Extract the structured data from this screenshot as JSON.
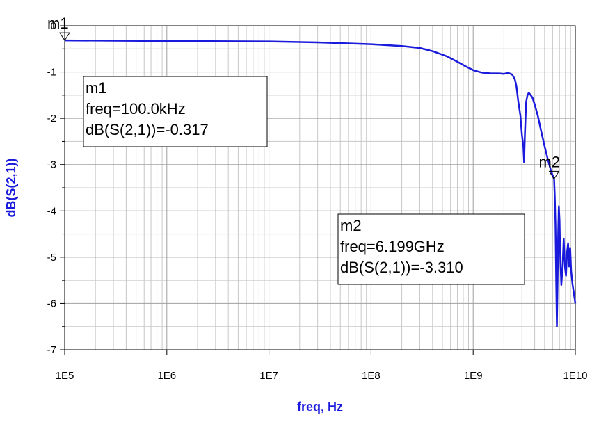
{
  "chart_data": {
    "type": "line",
    "x_scale": "log",
    "xlabel": "freq, Hz",
    "ylabel": "dB(S(2,1))",
    "xlim": [
      100000,
      10000000000
    ],
    "ylim": [
      -7,
      0
    ],
    "x_ticks": [
      "1E5",
      "1E6",
      "1E7",
      "1E8",
      "1E9",
      "1E10"
    ],
    "y_ticks": [
      "0",
      "-1",
      "-2",
      "-3",
      "-4",
      "-5",
      "-6",
      "-7"
    ],
    "grid": true,
    "series": [
      {
        "color": "#1a1adc",
        "x": [
          100000,
          1000000,
          10000000,
          30000000,
          100000000,
          200000000,
          300000000,
          400000000,
          550000000,
          700000000,
          850000000,
          1000000000,
          1200000000,
          1500000000,
          1800000000,
          2000000000,
          2200000000,
          2400000000,
          2550000000,
          2650000000,
          2750000000,
          2900000000,
          3000000000,
          3100000000,
          3150000000,
          3200000000,
          3300000000,
          3400000000,
          3500000000,
          3600000000,
          3800000000,
          4000000000,
          4300000000,
          4600000000,
          5000000000,
          5400000000,
          5800000000,
          6199000000,
          6300000000,
          6400000000,
          6500000000,
          6600000000,
          6700000000,
          6800000000,
          6900000000,
          7000000000,
          7100000000,
          7300000000,
          7500000000,
          7700000000,
          7900000000,
          8100000000,
          8300000000,
          8500000000,
          8700000000,
          8900000000,
          9100000000,
          9400000000,
          9700000000,
          10000000000
        ],
        "y": [
          -0.317,
          -0.33,
          -0.34,
          -0.36,
          -0.4,
          -0.44,
          -0.48,
          -0.55,
          -0.66,
          -0.78,
          -0.88,
          -0.96,
          -1.01,
          -1.03,
          -1.03,
          -1.04,
          -1.02,
          -1.05,
          -1.15,
          -1.3,
          -1.6,
          -1.95,
          -2.35,
          -2.6,
          -2.95,
          -2.4,
          -1.65,
          -1.5,
          -1.45,
          -1.48,
          -1.55,
          -1.7,
          -1.95,
          -2.25,
          -2.6,
          -2.9,
          -3.15,
          -3.31,
          -3.7,
          -4.3,
          -5.5,
          -6.5,
          -5.5,
          -4.5,
          -3.9,
          -4.2,
          -4.9,
          -5.6,
          -5.2,
          -4.6,
          -5.2,
          -5.4,
          -4.9,
          -4.7,
          -5.2,
          -4.8,
          -5.3,
          -5.6,
          -5.8,
          -6.0
        ]
      }
    ],
    "markers": [
      {
        "name": "m1",
        "x": 100000,
        "y": -0.317,
        "lines": [
          "m1",
          "freq=100.0kHz",
          "dB(S(2,1))=-0.317"
        ]
      },
      {
        "name": "m2",
        "x": 6199000000,
        "y": -3.31,
        "lines": [
          "m2",
          "freq=6.199GHz",
          "dB(S(2,1))=-3.310"
        ]
      }
    ]
  }
}
